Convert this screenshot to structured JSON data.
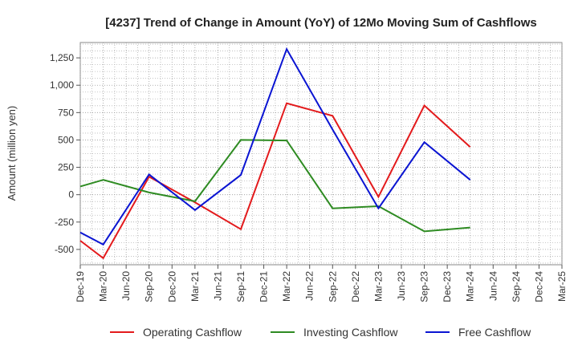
{
  "chart_data": {
    "type": "line",
    "title": "[4237]  Trend of Change in Amount (YoY) of 12Mo Moving Sum of Cashflows",
    "xlabel": "",
    "ylabel": "Amount (million yen)",
    "ylim": [
      -640,
      1390
    ],
    "yticks": [
      -500,
      -250,
      0,
      250,
      500,
      750,
      1000,
      1250
    ],
    "ytick_labels": [
      "-500",
      "-250",
      "0",
      "250",
      "500",
      "750",
      "1,000",
      "1,250"
    ],
    "categories": [
      "Dec-19",
      "Mar-20",
      "Jun-20",
      "Sep-20",
      "Dec-20",
      "Mar-21",
      "Jun-21",
      "Sep-21",
      "Dec-21",
      "Mar-22",
      "Jun-22",
      "Sep-22",
      "Dec-22",
      "Mar-23",
      "Jun-23",
      "Sep-23",
      "Dec-23",
      "Mar-24",
      "Jun-24",
      "Sep-24",
      "Dec-24",
      "Mar-25"
    ],
    "grid": true,
    "legend_position": "bottom",
    "series": [
      {
        "name": "Operating Cashflow",
        "color": "#e31a1c",
        "values": [
          -420,
          -580,
          null,
          165,
          null,
          -70,
          null,
          -315,
          null,
          835,
          null,
          720,
          null,
          -20,
          null,
          815,
          null,
          435,
          null,
          null,
          null,
          null
        ]
      },
      {
        "name": "Investing Cashflow",
        "color": "#2e8b22",
        "values": [
          75,
          135,
          null,
          20,
          null,
          -60,
          null,
          500,
          null,
          495,
          null,
          -125,
          null,
          -105,
          null,
          -335,
          null,
          -300,
          null,
          null,
          null,
          null
        ]
      },
      {
        "name": "Free Cashflow",
        "color": "#0a14d2",
        "values": [
          -345,
          -455,
          null,
          185,
          null,
          -140,
          null,
          180,
          null,
          1330,
          null,
          595,
          null,
          -125,
          null,
          480,
          null,
          135,
          null,
          null,
          null,
          null
        ]
      }
    ]
  }
}
